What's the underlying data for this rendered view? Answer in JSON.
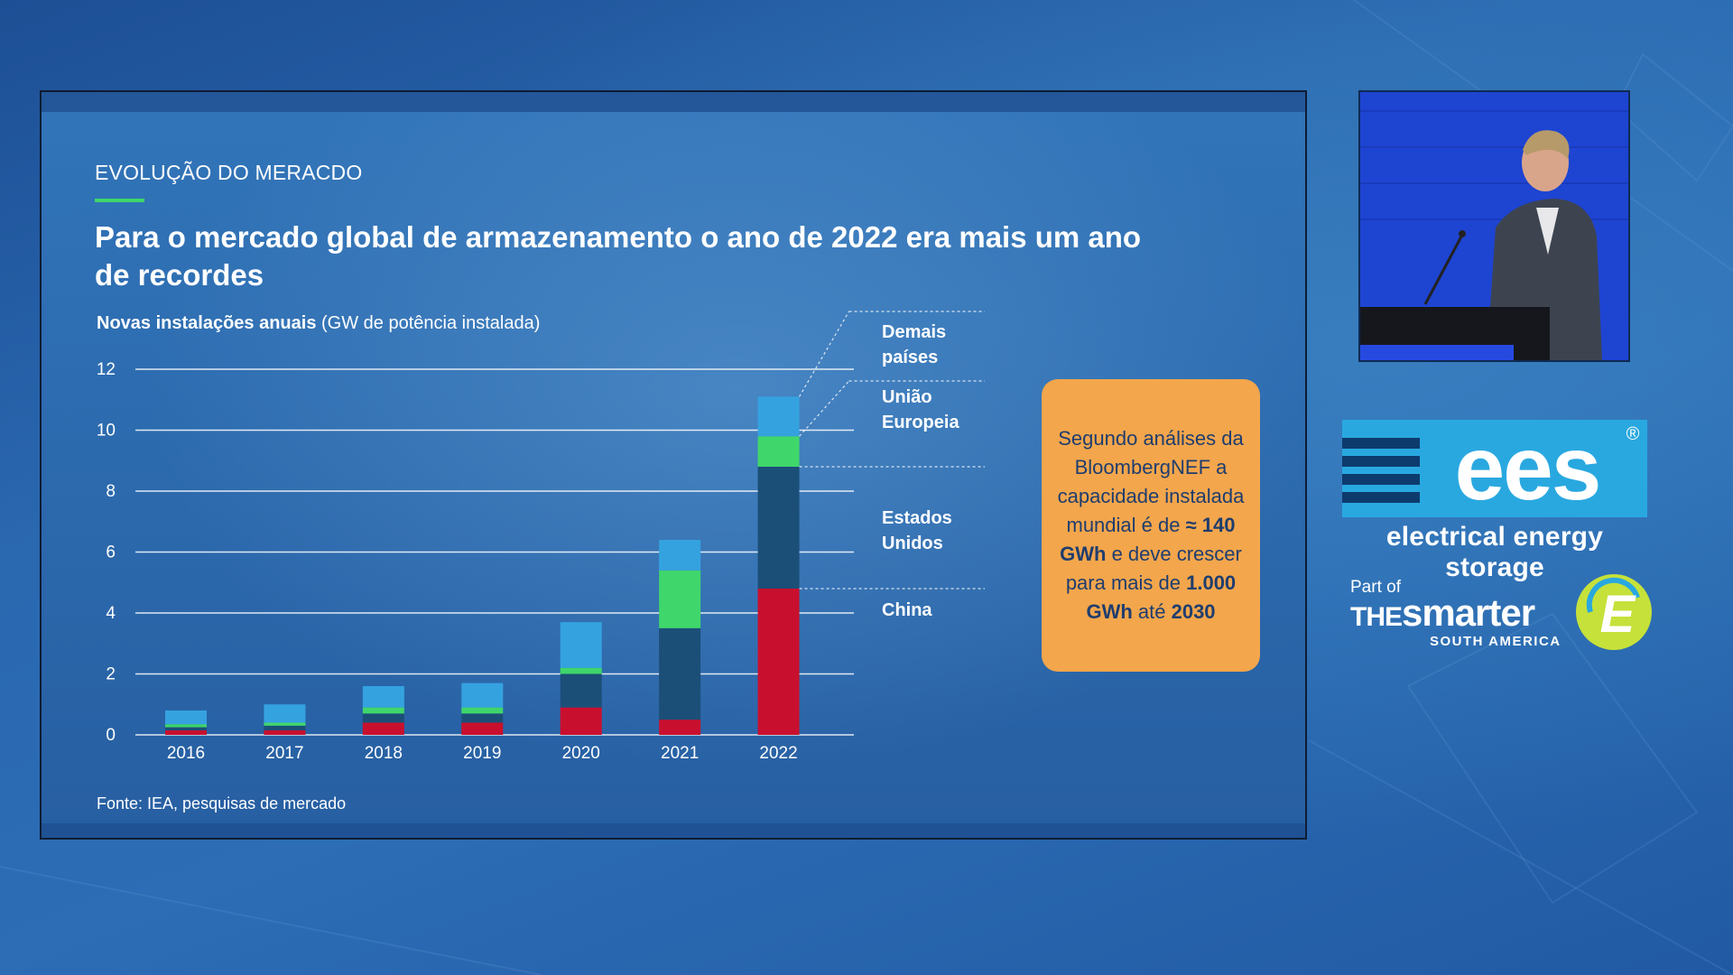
{
  "slide": {
    "section_label": "EVOLUÇÃO DO MERACDO",
    "headline": "Para o mercado global de armazenamento o ano de 2022 era mais um ano de recordes",
    "subtitle_bold": "Novas instalações anuais",
    "subtitle_rest": " (GW de potência instalada)",
    "source": "Fonte: IEA, pesquisas de mercado"
  },
  "callout": {
    "line1": "Segundo análises da BloombergNEF a capacidade instalada mundial é de ",
    "bold1": "≈ 140 GWh",
    "line2": " e deve crescer para mais de ",
    "bold2": "1.000 GWh",
    "line3": " até ",
    "bold3": "2030"
  },
  "chart_data": {
    "type": "bar",
    "stacked": true,
    "categories": [
      "2016",
      "2017",
      "2018",
      "2019",
      "2020",
      "2021",
      "2022"
    ],
    "ylim": [
      0,
      12
    ],
    "yticks": [
      0,
      2,
      4,
      6,
      8,
      10,
      12
    ],
    "grid": true,
    "series": [
      {
        "name": "China",
        "color": "#c8102e",
        "values": [
          0.15,
          0.15,
          0.4,
          0.4,
          0.9,
          0.5,
          4.8
        ]
      },
      {
        "name": "Estados Unidos",
        "color": "#1b4f78",
        "values": [
          0.1,
          0.15,
          0.3,
          0.3,
          1.1,
          3.0,
          4.0
        ]
      },
      {
        "name": "União Europeia",
        "color": "#3fd66b",
        "values": [
          0.1,
          0.1,
          0.2,
          0.2,
          0.2,
          1.9,
          1.0
        ]
      },
      {
        "name": "Demais países",
        "color": "#35a2e0",
        "values": [
          0.45,
          0.6,
          0.7,
          0.8,
          1.5,
          1.0,
          1.3
        ]
      }
    ],
    "legend_labels": [
      {
        "line1": "Demais",
        "line2": "países"
      },
      {
        "line1": "União",
        "line2": "Europeia"
      },
      {
        "line1": "Estados",
        "line2": "Unidos"
      },
      {
        "line1": "China",
        "line2": ""
      }
    ]
  },
  "branding": {
    "ees_text": "ees",
    "ees_tagline": "electrical energy storage",
    "registered": "®",
    "part_of": "Part of",
    "the": "THE",
    "smarter": "smarter",
    "south_america": "SOUTH AMERICA",
    "e_letter": "E"
  },
  "colors": {
    "accent_green": "#3fd66b",
    "callout_orange": "#f3a64c",
    "ees_cyan": "#29a8e0"
  }
}
